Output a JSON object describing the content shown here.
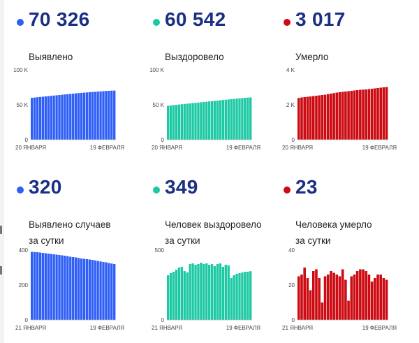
{
  "panels": [
    {
      "value": "70 326",
      "label_lines": [
        "Выявлено"
      ],
      "color": "#2f5ff7"
    },
    {
      "value": "60 542",
      "label_lines": [
        "Выздоровело"
      ],
      "color": "#1dc9a4"
    },
    {
      "value": "3 017",
      "label_lines": [
        "Умерло"
      ],
      "color": "#cc0b13"
    },
    {
      "value": "320",
      "label_lines": [
        "Выявлено случаев",
        "за сутки"
      ],
      "color": "#2f5ff7"
    },
    {
      "value": "349",
      "label_lines": [
        "Человек выздоровело",
        "за сутки"
      ],
      "color": "#1dc9a4"
    },
    {
      "value": "23",
      "label_lines": [
        "Человека умерло",
        "за сутки"
      ],
      "color": "#cc0b13"
    }
  ],
  "chart_data": [
    {
      "type": "bar",
      "series_color": "#2f5ff7",
      "ylim": [
        0,
        100000
      ],
      "y_ticks": [
        {
          "v": 0,
          "label": "0"
        },
        {
          "v": 50000,
          "label": "50 K"
        },
        {
          "v": 100000,
          "label": "100 K"
        }
      ],
      "x_tick_labels": [
        "20 ЯНВАРЯ",
        "19 ФЕВРАЛЯ"
      ],
      "values": [
        60000,
        60400,
        60800,
        61200,
        61600,
        62000,
        62400,
        62800,
        63200,
        63600,
        64000,
        64400,
        64800,
        65200,
        65600,
        66000,
        66400,
        66800,
        67100,
        67400,
        67700,
        68000,
        68300,
        68600,
        68900,
        69200,
        69500,
        69800,
        70000,
        70200,
        70326
      ]
    },
    {
      "type": "bar",
      "series_color": "#1dc9a4",
      "ylim": [
        0,
        100000
      ],
      "y_ticks": [
        {
          "v": 0,
          "label": "0"
        },
        {
          "v": 50000,
          "label": "50 K"
        },
        {
          "v": 100000,
          "label": "100 K"
        }
      ],
      "x_tick_labels": [
        "20 ЯНВАРЯ",
        "19 ФЕВРАЛЯ"
      ],
      "values": [
        48500,
        49000,
        49500,
        50000,
        50400,
        50800,
        51200,
        51600,
        52000,
        52400,
        52800,
        53200,
        53600,
        54000,
        54400,
        54800,
        55200,
        55600,
        56000,
        56400,
        56800,
        57200,
        57600,
        58000,
        58400,
        58800,
        59200,
        59600,
        60000,
        60300,
        60542
      ]
    },
    {
      "type": "bar",
      "series_color": "#cc0b13",
      "ylim": [
        0,
        4000
      ],
      "y_ticks": [
        {
          "v": 0,
          "label": "0"
        },
        {
          "v": 2000,
          "label": "2 K"
        },
        {
          "v": 4000,
          "label": "4 K"
        }
      ],
      "x_tick_labels": [
        "20 ЯНВАРЯ",
        "19 ФЕВРАЛЯ"
      ],
      "values": [
        2390,
        2420,
        2440,
        2460,
        2480,
        2500,
        2520,
        2540,
        2560,
        2580,
        2610,
        2640,
        2670,
        2700,
        2720,
        2740,
        2760,
        2780,
        2800,
        2820,
        2840,
        2860,
        2870,
        2880,
        2900,
        2920,
        2940,
        2960,
        2980,
        3000,
        3017
      ]
    },
    {
      "type": "bar",
      "series_color": "#2f5ff7",
      "ylim": [
        0,
        400
      ],
      "y_ticks": [
        {
          "v": 0,
          "label": "0"
        },
        {
          "v": 200,
          "label": "200"
        },
        {
          "v": 400,
          "label": "400"
        }
      ],
      "x_tick_labels": [
        "21 ЯНВАРЯ",
        "19 ФЕВРАЛЯ"
      ],
      "values": [
        390,
        389,
        388,
        386,
        384,
        382,
        380,
        378,
        376,
        374,
        372,
        370,
        368,
        365,
        362,
        360,
        358,
        355,
        352,
        350,
        348,
        346,
        344,
        341,
        338,
        335,
        332,
        330,
        326,
        323,
        320
      ]
    },
    {
      "type": "bar",
      "series_color": "#1dc9a4",
      "ylim": [
        0,
        500
      ],
      "y_ticks": [
        {
          "v": 0,
          "label": "0"
        },
        {
          "v": 500,
          "label": "500"
        }
      ],
      "x_tick_labels": [
        "21 ЯНВАРЯ",
        "19 ФЕВРАЛЯ"
      ],
      "values": [
        320,
        335,
        345,
        360,
        375,
        380,
        350,
        340,
        400,
        405,
        395,
        400,
        410,
        400,
        405,
        395,
        400,
        385,
        400,
        405,
        380,
        395,
        390,
        300,
        320,
        330,
        335,
        340,
        345,
        345,
        349
      ]
    },
    {
      "type": "bar",
      "series_color": "#cc0b13",
      "ylim": [
        0,
        40
      ],
      "y_ticks": [
        {
          "v": 0,
          "label": "0"
        },
        {
          "v": 20,
          "label": "20"
        },
        {
          "v": 40,
          "label": "40"
        }
      ],
      "x_tick_labels": [
        "21 ЯНВАРЯ",
        "19 ФЕВРАЛЯ"
      ],
      "values": [
        25,
        26,
        30,
        24,
        17,
        28,
        29,
        24,
        10,
        25,
        26,
        28,
        27,
        26,
        25,
        29,
        23,
        11,
        25,
        26,
        28,
        29,
        29,
        28,
        26,
        22,
        24,
        26,
        26,
        24,
        23
      ]
    }
  ]
}
